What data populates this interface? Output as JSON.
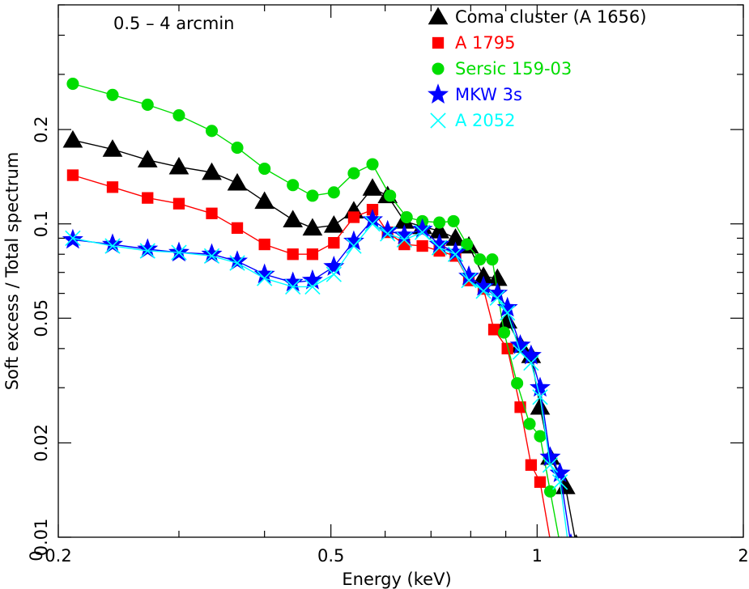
{
  "chart_data": {
    "type": "line",
    "title": "",
    "annotation": "0.5 – 4 arcmin",
    "xlabel": "Energy (keV)",
    "ylabel": "Soft excess / Total spectrum",
    "xscale": "log",
    "yscale": "log",
    "xlim": [
      0.2,
      2
    ],
    "ylim": [
      0.01,
      0.5
    ],
    "x_ticks": [
      {
        "value": 0.2,
        "label": "0.2"
      },
      {
        "value": 0.5,
        "label": "0.5"
      },
      {
        "value": 1,
        "label": "1"
      },
      {
        "value": 2,
        "label": "2"
      }
    ],
    "y_ticks": [
      {
        "value": 0.01,
        "label": "0.01"
      },
      {
        "value": 0.02,
        "label": "0.02"
      },
      {
        "value": 0.05,
        "label": "0.05"
      },
      {
        "value": 0.1,
        "label": "0.1"
      },
      {
        "value": 0.2,
        "label": "0.2"
      }
    ],
    "origin_label": "0",
    "grid": false,
    "legend_position": "top-right",
    "series": [
      {
        "name": "Coma cluster (A 1656)",
        "color": "#000000",
        "marker": "triangle",
        "points": [
          [
            0.21,
            0.185
          ],
          [
            0.24,
            0.173
          ],
          [
            0.27,
            0.16
          ],
          [
            0.3,
            0.152
          ],
          [
            0.335,
            0.146
          ],
          [
            0.365,
            0.135
          ],
          [
            0.4,
            0.118
          ],
          [
            0.44,
            0.103
          ],
          [
            0.47,
            0.097
          ],
          [
            0.505,
            0.099
          ],
          [
            0.54,
            0.11
          ],
          [
            0.575,
            0.13
          ],
          [
            0.605,
            0.123
          ],
          [
            0.64,
            0.102
          ],
          [
            0.68,
            0.098
          ],
          [
            0.72,
            0.095
          ],
          [
            0.76,
            0.09
          ],
          [
            0.795,
            0.085
          ],
          [
            0.835,
            0.068
          ],
          [
            0.875,
            0.067
          ],
          [
            0.905,
            0.049
          ],
          [
            0.945,
            0.041
          ],
          [
            0.98,
            0.038
          ],
          [
            1.01,
            0.026
          ],
          [
            1.045,
            0.018
          ],
          [
            1.1,
            0.0145
          ],
          [
            1.14,
            0.0095
          ]
        ]
      },
      {
        "name": "A 1795",
        "color": "#ff0000",
        "marker": "square",
        "points": [
          [
            0.21,
            0.143
          ],
          [
            0.24,
            0.131
          ],
          [
            0.27,
            0.121
          ],
          [
            0.3,
            0.116
          ],
          [
            0.335,
            0.108
          ],
          [
            0.365,
            0.097
          ],
          [
            0.4,
            0.086
          ],
          [
            0.44,
            0.08
          ],
          [
            0.47,
            0.08
          ],
          [
            0.505,
            0.087
          ],
          [
            0.54,
            0.105
          ],
          [
            0.575,
            0.111
          ],
          [
            0.605,
            0.094
          ],
          [
            0.64,
            0.086
          ],
          [
            0.68,
            0.085
          ],
          [
            0.72,
            0.082
          ],
          [
            0.76,
            0.079
          ],
          [
            0.795,
            0.066
          ],
          [
            0.835,
            0.062
          ],
          [
            0.865,
            0.046
          ],
          [
            0.905,
            0.04
          ],
          [
            0.945,
            0.026
          ],
          [
            0.98,
            0.017
          ],
          [
            1.01,
            0.015
          ],
          [
            1.05,
            0.0092
          ]
        ]
      },
      {
        "name": "Sersic 159-03",
        "color": "#00dd00",
        "marker": "circle",
        "points": [
          [
            0.21,
            0.28
          ],
          [
            0.24,
            0.258
          ],
          [
            0.27,
            0.24
          ],
          [
            0.3,
            0.222
          ],
          [
            0.335,
            0.198
          ],
          [
            0.365,
            0.175
          ],
          [
            0.4,
            0.15
          ],
          [
            0.44,
            0.133
          ],
          [
            0.47,
            0.123
          ],
          [
            0.505,
            0.126
          ],
          [
            0.54,
            0.145
          ],
          [
            0.575,
            0.155
          ],
          [
            0.61,
            0.123
          ],
          [
            0.645,
            0.105
          ],
          [
            0.68,
            0.102
          ],
          [
            0.72,
            0.101
          ],
          [
            0.755,
            0.102
          ],
          [
            0.79,
            0.086
          ],
          [
            0.825,
            0.077
          ],
          [
            0.86,
            0.077
          ],
          [
            0.895,
            0.045
          ],
          [
            0.935,
            0.031
          ],
          [
            0.975,
            0.023
          ],
          [
            1.01,
            0.021
          ],
          [
            1.045,
            0.014
          ],
          [
            1.08,
            0.0095
          ]
        ]
      },
      {
        "name": "MKW 3s",
        "color": "#0000ff",
        "marker": "star",
        "points": [
          [
            0.21,
            0.089
          ],
          [
            0.24,
            0.086
          ],
          [
            0.27,
            0.083
          ],
          [
            0.3,
            0.081
          ],
          [
            0.335,
            0.08
          ],
          [
            0.365,
            0.076
          ],
          [
            0.4,
            0.069
          ],
          [
            0.44,
            0.065
          ],
          [
            0.47,
            0.066
          ],
          [
            0.505,
            0.073
          ],
          [
            0.54,
            0.088
          ],
          [
            0.575,
            0.103
          ],
          [
            0.605,
            0.095
          ],
          [
            0.64,
            0.092
          ],
          [
            0.68,
            0.096
          ],
          [
            0.72,
            0.086
          ],
          [
            0.76,
            0.081
          ],
          [
            0.795,
            0.068
          ],
          [
            0.835,
            0.063
          ],
          [
            0.875,
            0.06
          ],
          [
            0.905,
            0.054
          ],
          [
            0.945,
            0.041
          ],
          [
            0.98,
            0.038
          ],
          [
            1.01,
            0.03
          ],
          [
            1.045,
            0.018
          ],
          [
            1.08,
            0.016
          ],
          [
            1.12,
            0.0095
          ]
        ]
      },
      {
        "name": "A 2052",
        "color": "#00ffff",
        "marker": "cross",
        "points": [
          [
            0.21,
            0.09
          ],
          [
            0.24,
            0.085
          ],
          [
            0.27,
            0.082
          ],
          [
            0.3,
            0.081
          ],
          [
            0.335,
            0.079
          ],
          [
            0.365,
            0.075
          ],
          [
            0.4,
            0.067
          ],
          [
            0.44,
            0.063
          ],
          [
            0.47,
            0.063
          ],
          [
            0.505,
            0.069
          ],
          [
            0.54,
            0.085
          ],
          [
            0.575,
            0.1
          ],
          [
            0.605,
            0.093
          ],
          [
            0.64,
            0.089
          ],
          [
            0.68,
            0.094
          ],
          [
            0.72,
            0.084
          ],
          [
            0.76,
            0.08
          ],
          [
            0.795,
            0.066
          ],
          [
            0.835,
            0.061
          ],
          [
            0.875,
            0.058
          ],
          [
            0.905,
            0.052
          ],
          [
            0.945,
            0.039
          ],
          [
            0.98,
            0.036
          ],
          [
            1.01,
            0.028
          ],
          [
            1.045,
            0.017
          ],
          [
            1.08,
            0.015
          ],
          [
            1.11,
            0.0095
          ]
        ]
      }
    ]
  }
}
